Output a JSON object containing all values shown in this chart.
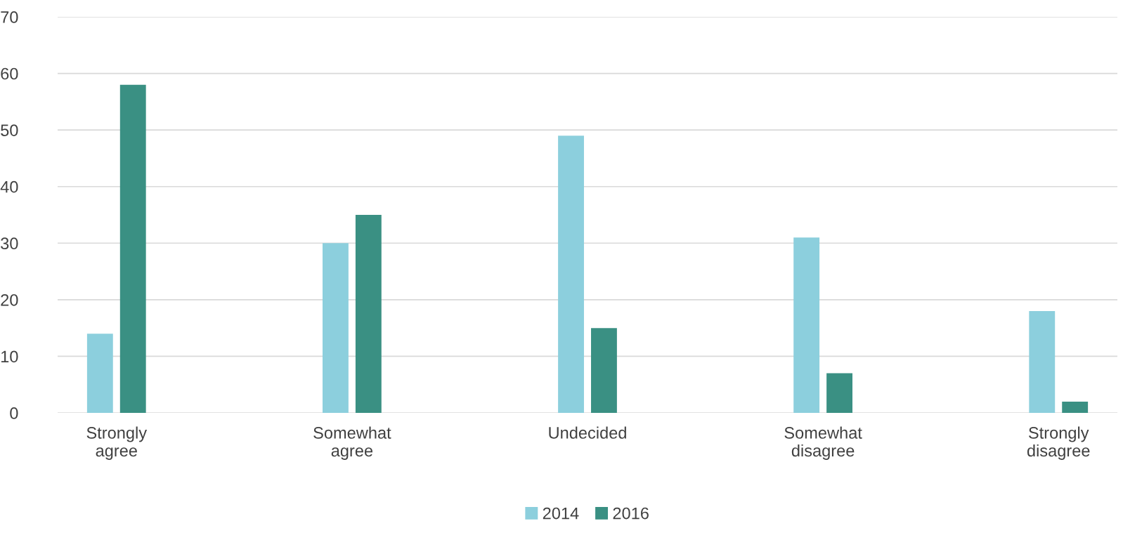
{
  "chart_data": {
    "type": "bar",
    "categories": [
      "Strongly\nagree",
      "Somewhat\nagree",
      "Undecided",
      "Somewhat\ndisagree",
      "Strongly\ndisagree"
    ],
    "series": [
      {
        "name": "2014",
        "color": "#8ccfdd",
        "values": [
          14,
          30,
          49,
          31,
          18
        ]
      },
      {
        "name": "2016",
        "color": "#3a9083",
        "values": [
          58,
          35,
          15,
          7,
          2
        ]
      }
    ],
    "ylim": [
      0,
      70
    ],
    "yticks": [
      0,
      10,
      20,
      30,
      40,
      50,
      60,
      70
    ],
    "grid": "y",
    "legend": "bottom"
  }
}
